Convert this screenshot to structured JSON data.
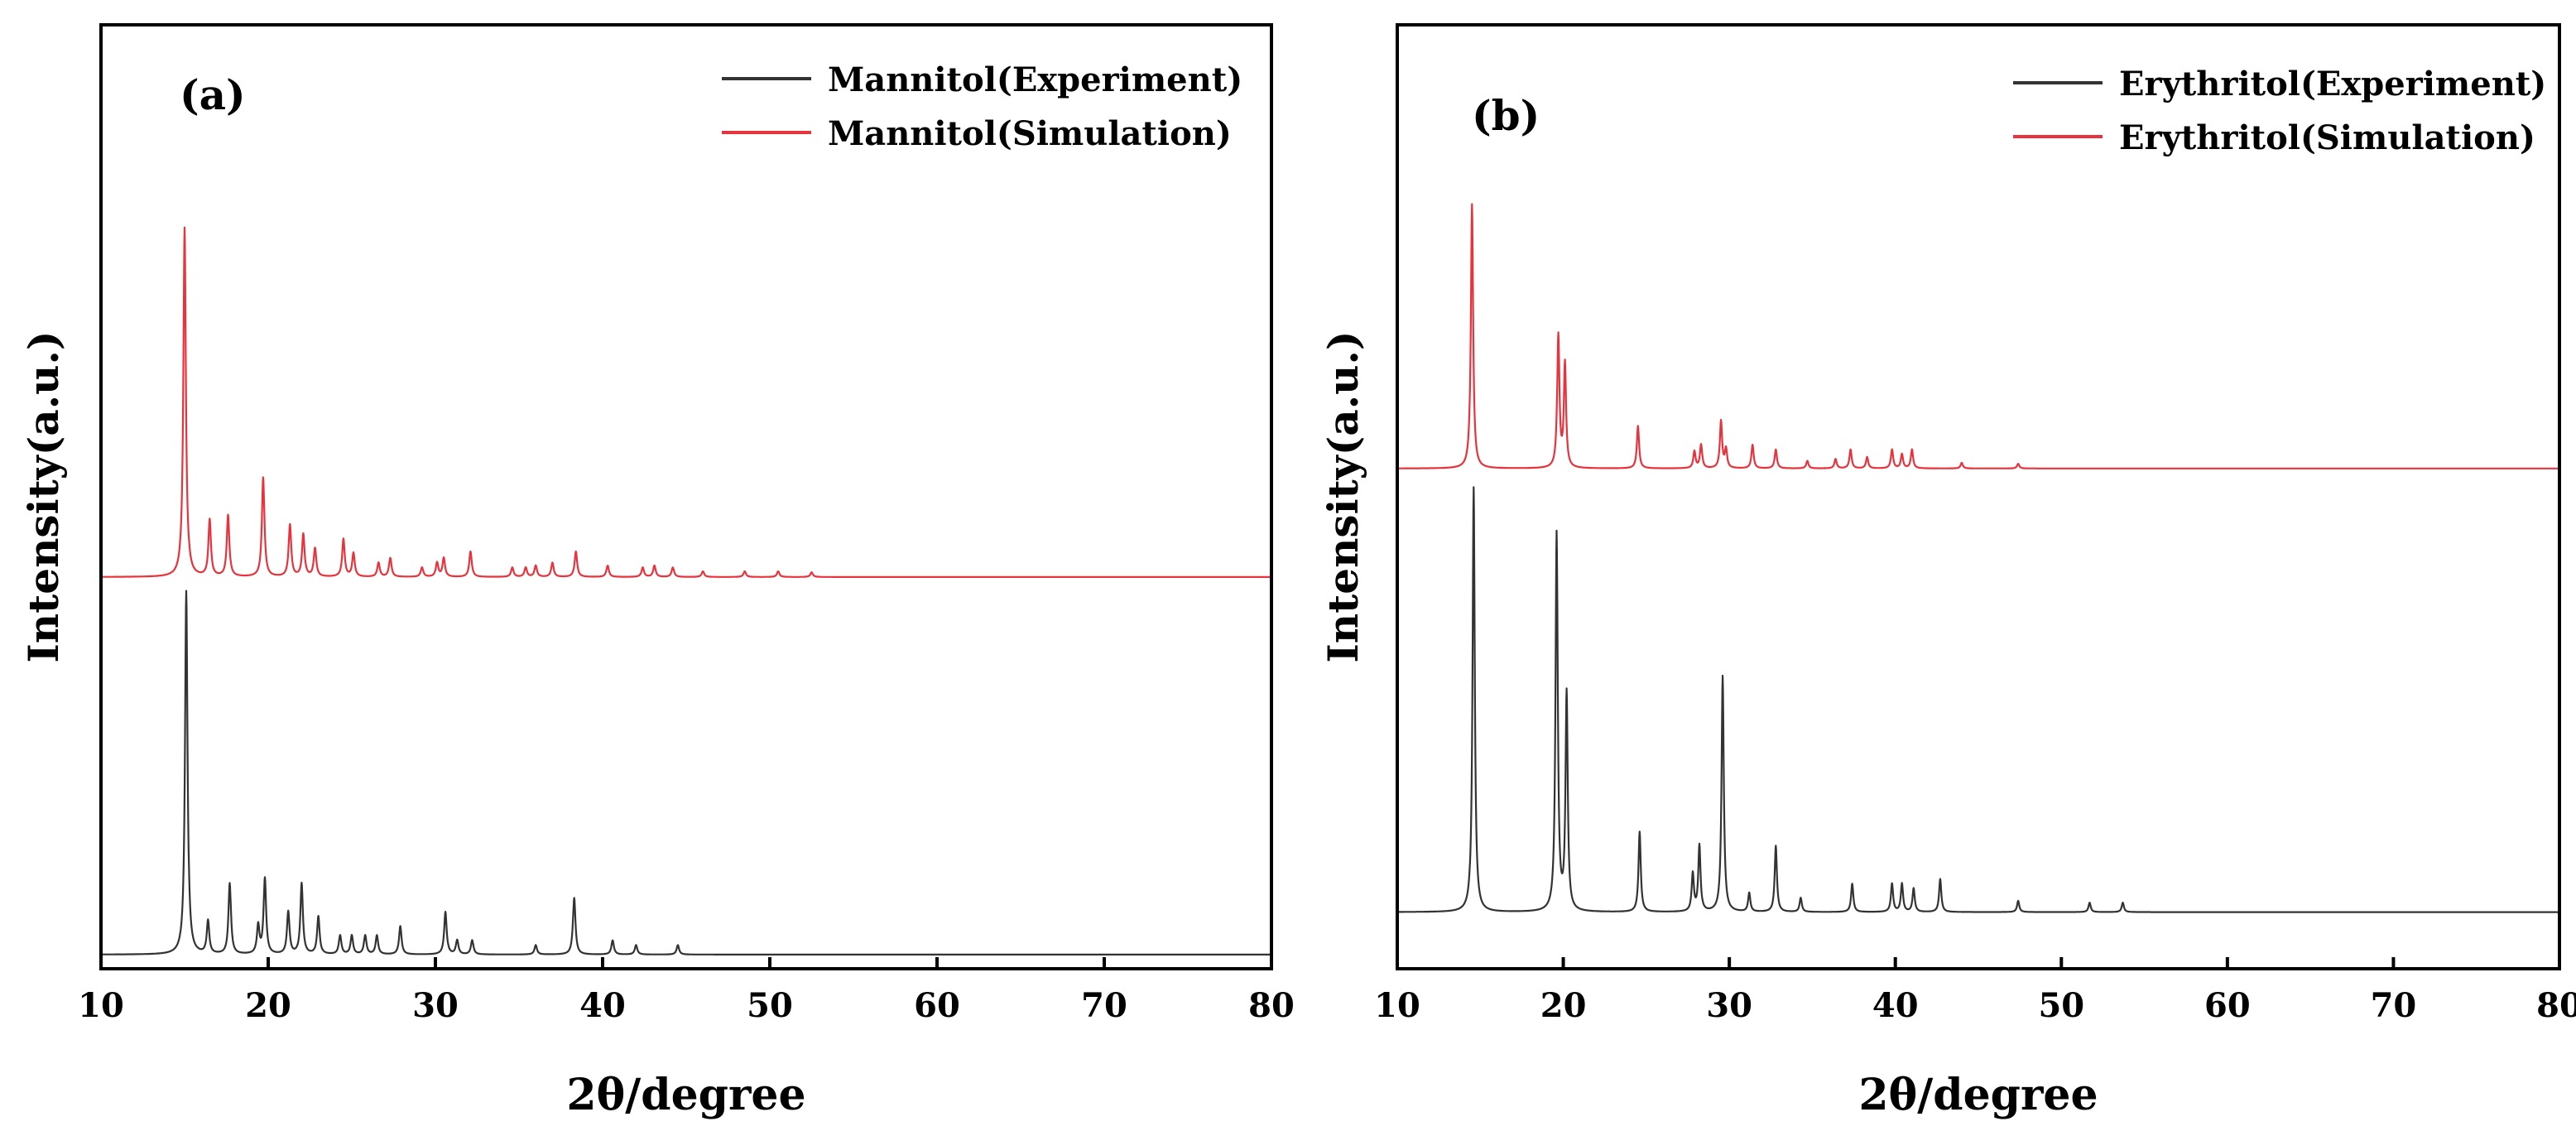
{
  "chart_data": [
    {
      "type": "line",
      "panel_label": "(a)",
      "xlabel": "2θ/degree",
      "ylabel": "Intensity(a.u.)",
      "xlim": [
        10,
        80
      ],
      "xticks": [
        10,
        20,
        30,
        40,
        50,
        60,
        70,
        80
      ],
      "ylim": [
        0,
        1
      ],
      "legend_position": "top-right",
      "series": [
        {
          "name": "Mannitol(Experiment)",
          "color": "#333333",
          "baseline": 0.015,
          "peaks": [
            {
              "x": 15.1,
              "h": 0.385
            },
            {
              "x": 16.4,
              "h": 0.035
            },
            {
              "x": 17.7,
              "h": 0.075
            },
            {
              "x": 19.4,
              "h": 0.03
            },
            {
              "x": 19.8,
              "h": 0.08
            },
            {
              "x": 21.2,
              "h": 0.045
            },
            {
              "x": 22.0,
              "h": 0.075
            },
            {
              "x": 23.0,
              "h": 0.04
            },
            {
              "x": 24.3,
              "h": 0.02
            },
            {
              "x": 25.0,
              "h": 0.02
            },
            {
              "x": 25.8,
              "h": 0.02
            },
            {
              "x": 26.5,
              "h": 0.02
            },
            {
              "x": 27.9,
              "h": 0.03
            },
            {
              "x": 30.6,
              "h": 0.045
            },
            {
              "x": 31.3,
              "h": 0.015
            },
            {
              "x": 32.2,
              "h": 0.015
            },
            {
              "x": 36.0,
              "h": 0.01
            },
            {
              "x": 38.3,
              "h": 0.06
            },
            {
              "x": 40.6,
              "h": 0.015
            },
            {
              "x": 42.0,
              "h": 0.01
            },
            {
              "x": 44.5,
              "h": 0.01
            }
          ]
        },
        {
          "name": "Mannitol(Simulation)",
          "color": "#e8323c",
          "baseline": 0.415,
          "peaks": [
            {
              "x": 15.0,
              "h": 0.37
            },
            {
              "x": 16.5,
              "h": 0.06
            },
            {
              "x": 17.6,
              "h": 0.065
            },
            {
              "x": 19.7,
              "h": 0.105
            },
            {
              "x": 21.3,
              "h": 0.055
            },
            {
              "x": 22.1,
              "h": 0.045
            },
            {
              "x": 22.8,
              "h": 0.03
            },
            {
              "x": 24.5,
              "h": 0.04
            },
            {
              "x": 25.1,
              "h": 0.025
            },
            {
              "x": 26.6,
              "h": 0.015
            },
            {
              "x": 27.3,
              "h": 0.02
            },
            {
              "x": 29.2,
              "h": 0.01
            },
            {
              "x": 30.1,
              "h": 0.015
            },
            {
              "x": 30.5,
              "h": 0.02
            },
            {
              "x": 32.1,
              "h": 0.027
            },
            {
              "x": 34.6,
              "h": 0.01
            },
            {
              "x": 35.4,
              "h": 0.01
            },
            {
              "x": 36.0,
              "h": 0.012
            },
            {
              "x": 37.0,
              "h": 0.015
            },
            {
              "x": 38.4,
              "h": 0.027
            },
            {
              "x": 40.3,
              "h": 0.012
            },
            {
              "x": 42.4,
              "h": 0.01
            },
            {
              "x": 43.1,
              "h": 0.012
            },
            {
              "x": 44.2,
              "h": 0.01
            },
            {
              "x": 46.0,
              "h": 0.006
            },
            {
              "x": 48.5,
              "h": 0.006
            },
            {
              "x": 50.5,
              "h": 0.006
            },
            {
              "x": 52.5,
              "h": 0.005
            }
          ]
        }
      ]
    },
    {
      "type": "line",
      "panel_label": "(b)",
      "xlabel": "2θ/degree",
      "ylabel": "Intensity(a.u.)",
      "xlim": [
        10,
        80
      ],
      "xticks": [
        10,
        20,
        30,
        40,
        50,
        60,
        70,
        80
      ],
      "ylim": [
        0,
        1
      ],
      "legend_position": "top-right",
      "series": [
        {
          "name": "Erythritol(Experiment)",
          "color": "#333333",
          "baseline": 0.06,
          "peaks": [
            {
              "x": 14.6,
              "h": 0.45
            },
            {
              "x": 19.6,
              "h": 0.4
            },
            {
              "x": 20.2,
              "h": 0.23
            },
            {
              "x": 24.6,
              "h": 0.085
            },
            {
              "x": 27.8,
              "h": 0.04
            },
            {
              "x": 28.2,
              "h": 0.07
            },
            {
              "x": 29.6,
              "h": 0.25
            },
            {
              "x": 31.2,
              "h": 0.02
            },
            {
              "x": 32.8,
              "h": 0.07
            },
            {
              "x": 34.3,
              "h": 0.015
            },
            {
              "x": 37.4,
              "h": 0.03
            },
            {
              "x": 39.8,
              "h": 0.03
            },
            {
              "x": 40.4,
              "h": 0.03
            },
            {
              "x": 41.1,
              "h": 0.025
            },
            {
              "x": 42.7,
              "h": 0.035
            },
            {
              "x": 47.4,
              "h": 0.012
            },
            {
              "x": 51.7,
              "h": 0.01
            },
            {
              "x": 53.7,
              "h": 0.01
            }
          ]
        },
        {
          "name": "Erythritol(Simulation)",
          "color": "#e8323c",
          "baseline": 0.53,
          "peaks": [
            {
              "x": 14.5,
              "h": 0.28
            },
            {
              "x": 19.7,
              "h": 0.14
            },
            {
              "x": 20.1,
              "h": 0.11
            },
            {
              "x": 24.5,
              "h": 0.045
            },
            {
              "x": 27.9,
              "h": 0.018
            },
            {
              "x": 28.3,
              "h": 0.025
            },
            {
              "x": 29.5,
              "h": 0.05
            },
            {
              "x": 29.8,
              "h": 0.02
            },
            {
              "x": 31.4,
              "h": 0.025
            },
            {
              "x": 32.8,
              "h": 0.02
            },
            {
              "x": 34.7,
              "h": 0.008
            },
            {
              "x": 36.4,
              "h": 0.01
            },
            {
              "x": 37.3,
              "h": 0.02
            },
            {
              "x": 38.3,
              "h": 0.012
            },
            {
              "x": 39.8,
              "h": 0.02
            },
            {
              "x": 40.4,
              "h": 0.015
            },
            {
              "x": 41.0,
              "h": 0.02
            },
            {
              "x": 44.0,
              "h": 0.006
            },
            {
              "x": 47.4,
              "h": 0.005
            }
          ]
        }
      ]
    }
  ]
}
